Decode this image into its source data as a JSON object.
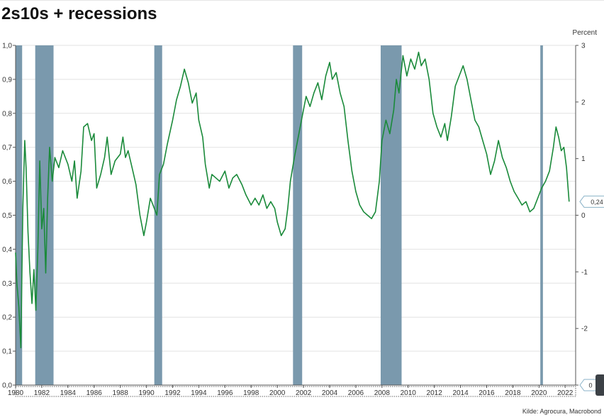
{
  "title": "2s10s + recessions",
  "source": "Kilde: Agrocura, Macrobond",
  "colors": {
    "line": "#1a8a3a",
    "recession": "#7a99ad",
    "grid": "#e2e2e2",
    "axis": "#555555",
    "callout": "#8ab2c8"
  },
  "chart_data": {
    "type": "line",
    "title": "2s10s + recessions",
    "left_axis": {
      "ylim": [
        0,
        1.0
      ],
      "ticks": [
        "0,0",
        "0,1",
        "0,2",
        "0,3",
        "0,4",
        "0,5",
        "0,6",
        "0,7",
        "0,8",
        "0,9",
        "1,0"
      ]
    },
    "right_axis": {
      "unit": "Percent",
      "ylim": [
        -3,
        3
      ],
      "ticks": [
        "-3",
        "-2",
        "-1",
        "0",
        "1",
        "2",
        "3"
      ]
    },
    "xlim": [
      1980,
      2022.8
    ],
    "x_ticks": [
      "1980",
      "1982",
      "1984",
      "1986",
      "1988",
      "1990",
      "1992",
      "1994",
      "1996",
      "1998",
      "2000",
      "2002",
      "2004",
      "2006",
      "2008",
      "2010",
      "2012",
      "2014",
      "2016",
      "2018",
      "2020",
      "2022"
    ],
    "grid": true,
    "recessions": [
      [
        1980.0,
        1980.5
      ],
      [
        1981.5,
        1982.9
      ],
      [
        1990.6,
        1991.2
      ],
      [
        2001.2,
        2001.9
      ],
      [
        2007.9,
        2009.5
      ],
      [
        2020.1,
        2020.3
      ]
    ],
    "series": [
      {
        "axis": "left",
        "points": [
          [
            1980.0,
            0.39
          ],
          [
            1980.1,
            0.3
          ],
          [
            1980.25,
            0.23
          ],
          [
            1980.4,
            0.11
          ],
          [
            1980.55,
            0.52
          ],
          [
            1980.7,
            0.72
          ],
          [
            1980.8,
            0.64
          ],
          [
            1980.95,
            0.45
          ],
          [
            1981.1,
            0.33
          ],
          [
            1981.25,
            0.24
          ],
          [
            1981.4,
            0.34
          ],
          [
            1981.55,
            0.22
          ],
          [
            1981.7,
            0.4
          ],
          [
            1981.85,
            0.66
          ],
          [
            1982.0,
            0.46
          ],
          [
            1982.15,
            0.52
          ],
          [
            1982.3,
            0.33
          ],
          [
            1982.45,
            0.55
          ],
          [
            1982.6,
            0.7
          ],
          [
            1982.8,
            0.6
          ],
          [
            1983.0,
            0.67
          ],
          [
            1983.3,
            0.64
          ],
          [
            1983.6,
            0.69
          ],
          [
            1984.0,
            0.65
          ],
          [
            1984.3,
            0.6
          ],
          [
            1984.5,
            0.66
          ],
          [
            1984.7,
            0.55
          ],
          [
            1985.0,
            0.63
          ],
          [
            1985.2,
            0.76
          ],
          [
            1985.5,
            0.77
          ],
          [
            1985.8,
            0.72
          ],
          [
            1986.0,
            0.74
          ],
          [
            1986.2,
            0.58
          ],
          [
            1986.5,
            0.62
          ],
          [
            1986.8,
            0.67
          ],
          [
            1987.0,
            0.73
          ],
          [
            1987.3,
            0.62
          ],
          [
            1987.6,
            0.66
          ],
          [
            1988.0,
            0.68
          ],
          [
            1988.2,
            0.73
          ],
          [
            1988.4,
            0.67
          ],
          [
            1988.6,
            0.69
          ],
          [
            1988.9,
            0.64
          ],
          [
            1989.2,
            0.59
          ],
          [
            1989.5,
            0.5
          ],
          [
            1989.8,
            0.44
          ],
          [
            1990.0,
            0.48
          ],
          [
            1990.3,
            0.55
          ],
          [
            1990.6,
            0.52
          ],
          [
            1990.8,
            0.5
          ],
          [
            1991.0,
            0.62
          ],
          [
            1991.3,
            0.65
          ],
          [
            1991.6,
            0.71
          ],
          [
            1992.0,
            0.78
          ],
          [
            1992.3,
            0.84
          ],
          [
            1992.6,
            0.88
          ],
          [
            1992.9,
            0.93
          ],
          [
            1993.2,
            0.89
          ],
          [
            1993.5,
            0.83
          ],
          [
            1993.8,
            0.86
          ],
          [
            1994.0,
            0.78
          ],
          [
            1994.3,
            0.73
          ],
          [
            1994.5,
            0.65
          ],
          [
            1994.8,
            0.58
          ],
          [
            1995.0,
            0.62
          ],
          [
            1995.3,
            0.61
          ],
          [
            1995.6,
            0.6
          ],
          [
            1996.0,
            0.63
          ],
          [
            1996.3,
            0.58
          ],
          [
            1996.6,
            0.61
          ],
          [
            1996.9,
            0.62
          ],
          [
            1997.3,
            0.59
          ],
          [
            1997.6,
            0.56
          ],
          [
            1998.0,
            0.53
          ],
          [
            1998.3,
            0.55
          ],
          [
            1998.6,
            0.53
          ],
          [
            1998.9,
            0.56
          ],
          [
            1999.2,
            0.52
          ],
          [
            1999.5,
            0.54
          ],
          [
            1999.8,
            0.52
          ],
          [
            2000.0,
            0.48
          ],
          [
            2000.3,
            0.44
          ],
          [
            2000.6,
            0.46
          ],
          [
            2000.8,
            0.52
          ],
          [
            2001.0,
            0.6
          ],
          [
            2001.3,
            0.67
          ],
          [
            2001.6,
            0.73
          ],
          [
            2001.9,
            0.79
          ],
          [
            2002.2,
            0.85
          ],
          [
            2002.5,
            0.82
          ],
          [
            2002.8,
            0.86
          ],
          [
            2003.1,
            0.89
          ],
          [
            2003.4,
            0.84
          ],
          [
            2003.7,
            0.91
          ],
          [
            2004.0,
            0.95
          ],
          [
            2004.2,
            0.9
          ],
          [
            2004.5,
            0.92
          ],
          [
            2004.8,
            0.86
          ],
          [
            2005.1,
            0.82
          ],
          [
            2005.4,
            0.72
          ],
          [
            2005.7,
            0.63
          ],
          [
            2006.0,
            0.57
          ],
          [
            2006.3,
            0.53
          ],
          [
            2006.6,
            0.51
          ],
          [
            2006.9,
            0.5
          ],
          [
            2007.2,
            0.49
          ],
          [
            2007.5,
            0.51
          ],
          [
            2007.8,
            0.6
          ],
          [
            2008.0,
            0.72
          ],
          [
            2008.3,
            0.78
          ],
          [
            2008.6,
            0.74
          ],
          [
            2008.9,
            0.81
          ],
          [
            2009.1,
            0.9
          ],
          [
            2009.3,
            0.86
          ],
          [
            2009.6,
            0.97
          ],
          [
            2009.9,
            0.91
          ],
          [
            2010.2,
            0.96
          ],
          [
            2010.5,
            0.93
          ],
          [
            2010.8,
            0.98
          ],
          [
            2011.0,
            0.94
          ],
          [
            2011.3,
            0.96
          ],
          [
            2011.6,
            0.9
          ],
          [
            2011.9,
            0.8
          ],
          [
            2012.2,
            0.76
          ],
          [
            2012.5,
            0.73
          ],
          [
            2012.8,
            0.77
          ],
          [
            2013.0,
            0.72
          ],
          [
            2013.3,
            0.79
          ],
          [
            2013.6,
            0.88
          ],
          [
            2013.9,
            0.91
          ],
          [
            2014.2,
            0.94
          ],
          [
            2014.5,
            0.9
          ],
          [
            2014.8,
            0.84
          ],
          [
            2015.1,
            0.78
          ],
          [
            2015.4,
            0.76
          ],
          [
            2015.7,
            0.72
          ],
          [
            2016.0,
            0.68
          ],
          [
            2016.3,
            0.62
          ],
          [
            2016.6,
            0.66
          ],
          [
            2016.9,
            0.72
          ],
          [
            2017.2,
            0.67
          ],
          [
            2017.5,
            0.64
          ],
          [
            2017.8,
            0.6
          ],
          [
            2018.1,
            0.57
          ],
          [
            2018.4,
            0.55
          ],
          [
            2018.7,
            0.53
          ],
          [
            2019.0,
            0.54
          ],
          [
            2019.3,
            0.51
          ],
          [
            2019.6,
            0.52
          ],
          [
            2019.9,
            0.55
          ],
          [
            2020.2,
            0.58
          ],
          [
            2020.5,
            0.6
          ],
          [
            2020.8,
            0.63
          ],
          [
            2021.1,
            0.7
          ],
          [
            2021.3,
            0.76
          ],
          [
            2021.5,
            0.73
          ],
          [
            2021.7,
            0.69
          ],
          [
            2021.9,
            0.7
          ],
          [
            2022.1,
            0.64
          ],
          [
            2022.3,
            0.54
          ]
        ]
      }
    ],
    "callouts": [
      {
        "axis": "right",
        "label": "0,24",
        "value": 0.24
      },
      {
        "axis": "right",
        "label": "0",
        "value": -3
      }
    ]
  }
}
